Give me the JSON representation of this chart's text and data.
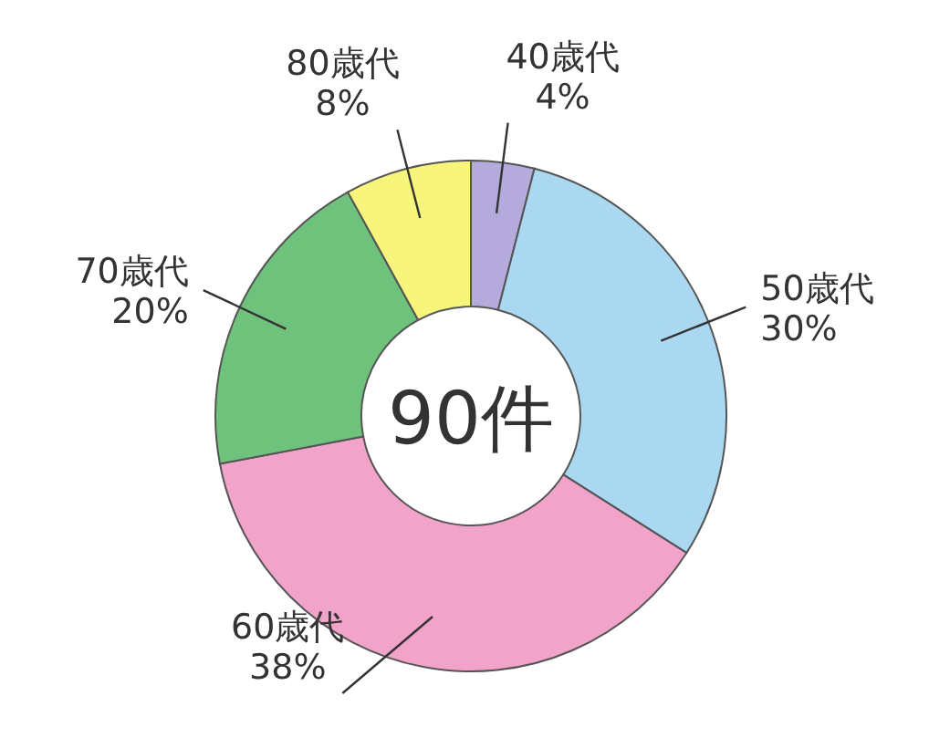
{
  "chart_data": {
    "type": "donut",
    "categories": [
      "40歳代",
      "50歳代",
      "60歳代",
      "70歳代",
      "80歳代"
    ],
    "values": [
      4,
      30,
      38,
      20,
      8
    ],
    "value_labels": [
      "4%",
      "30%",
      "38%",
      "20%",
      "8%"
    ],
    "colors": [
      "#b4aadc",
      "#aad8f0",
      "#f2a3c9",
      "#6fc27c",
      "#f7f57c"
    ],
    "annotations": [
      "90件"
    ]
  }
}
